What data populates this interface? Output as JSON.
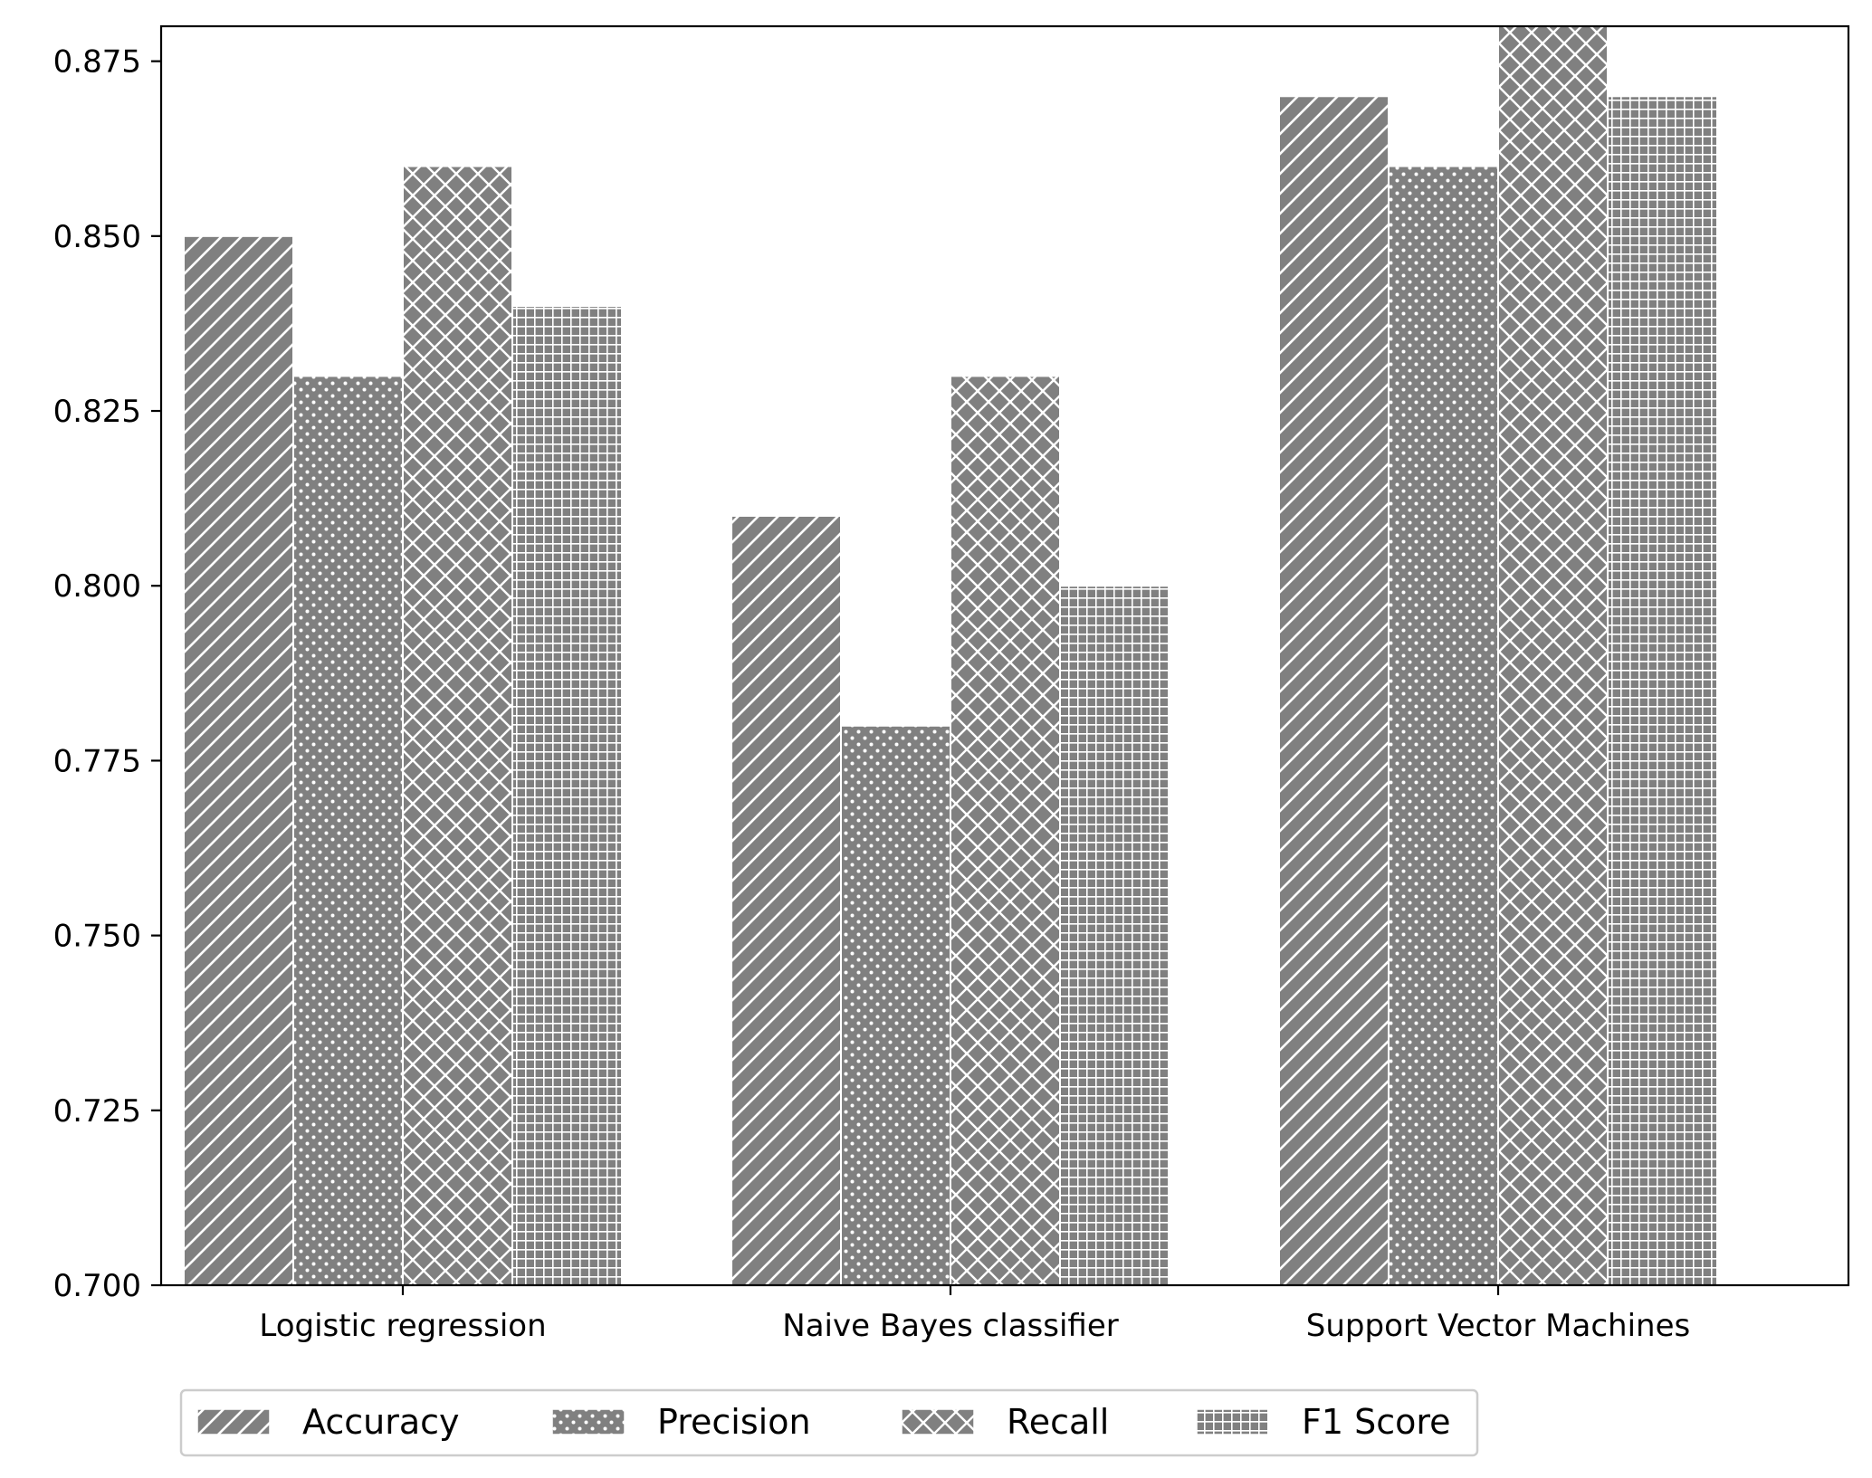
{
  "chart_data": {
    "type": "bar",
    "categories": [
      "Logistic regression",
      "Naive Bayes classifier",
      "Support Vector Machines"
    ],
    "series": [
      {
        "name": "Accuracy",
        "values": [
          0.85,
          0.81,
          0.87
        ],
        "hatch": "diagonal"
      },
      {
        "name": "Precision",
        "values": [
          0.83,
          0.78,
          0.86
        ],
        "hatch": "dots"
      },
      {
        "name": "Recall",
        "values": [
          0.86,
          0.83,
          0.88
        ],
        "hatch": "crosshatch"
      },
      {
        "name": "F1 Score",
        "values": [
          0.84,
          0.8,
          0.87
        ],
        "hatch": "grid"
      }
    ],
    "yticks": [
      "0.700",
      "0.725",
      "0.750",
      "0.775",
      "0.800",
      "0.825",
      "0.850",
      "0.875"
    ],
    "ylim": [
      0.7,
      0.88
    ],
    "grid": false,
    "legend_position": "bottom-center",
    "bar_color": "#808080",
    "hatch_color": "#ffffff"
  }
}
